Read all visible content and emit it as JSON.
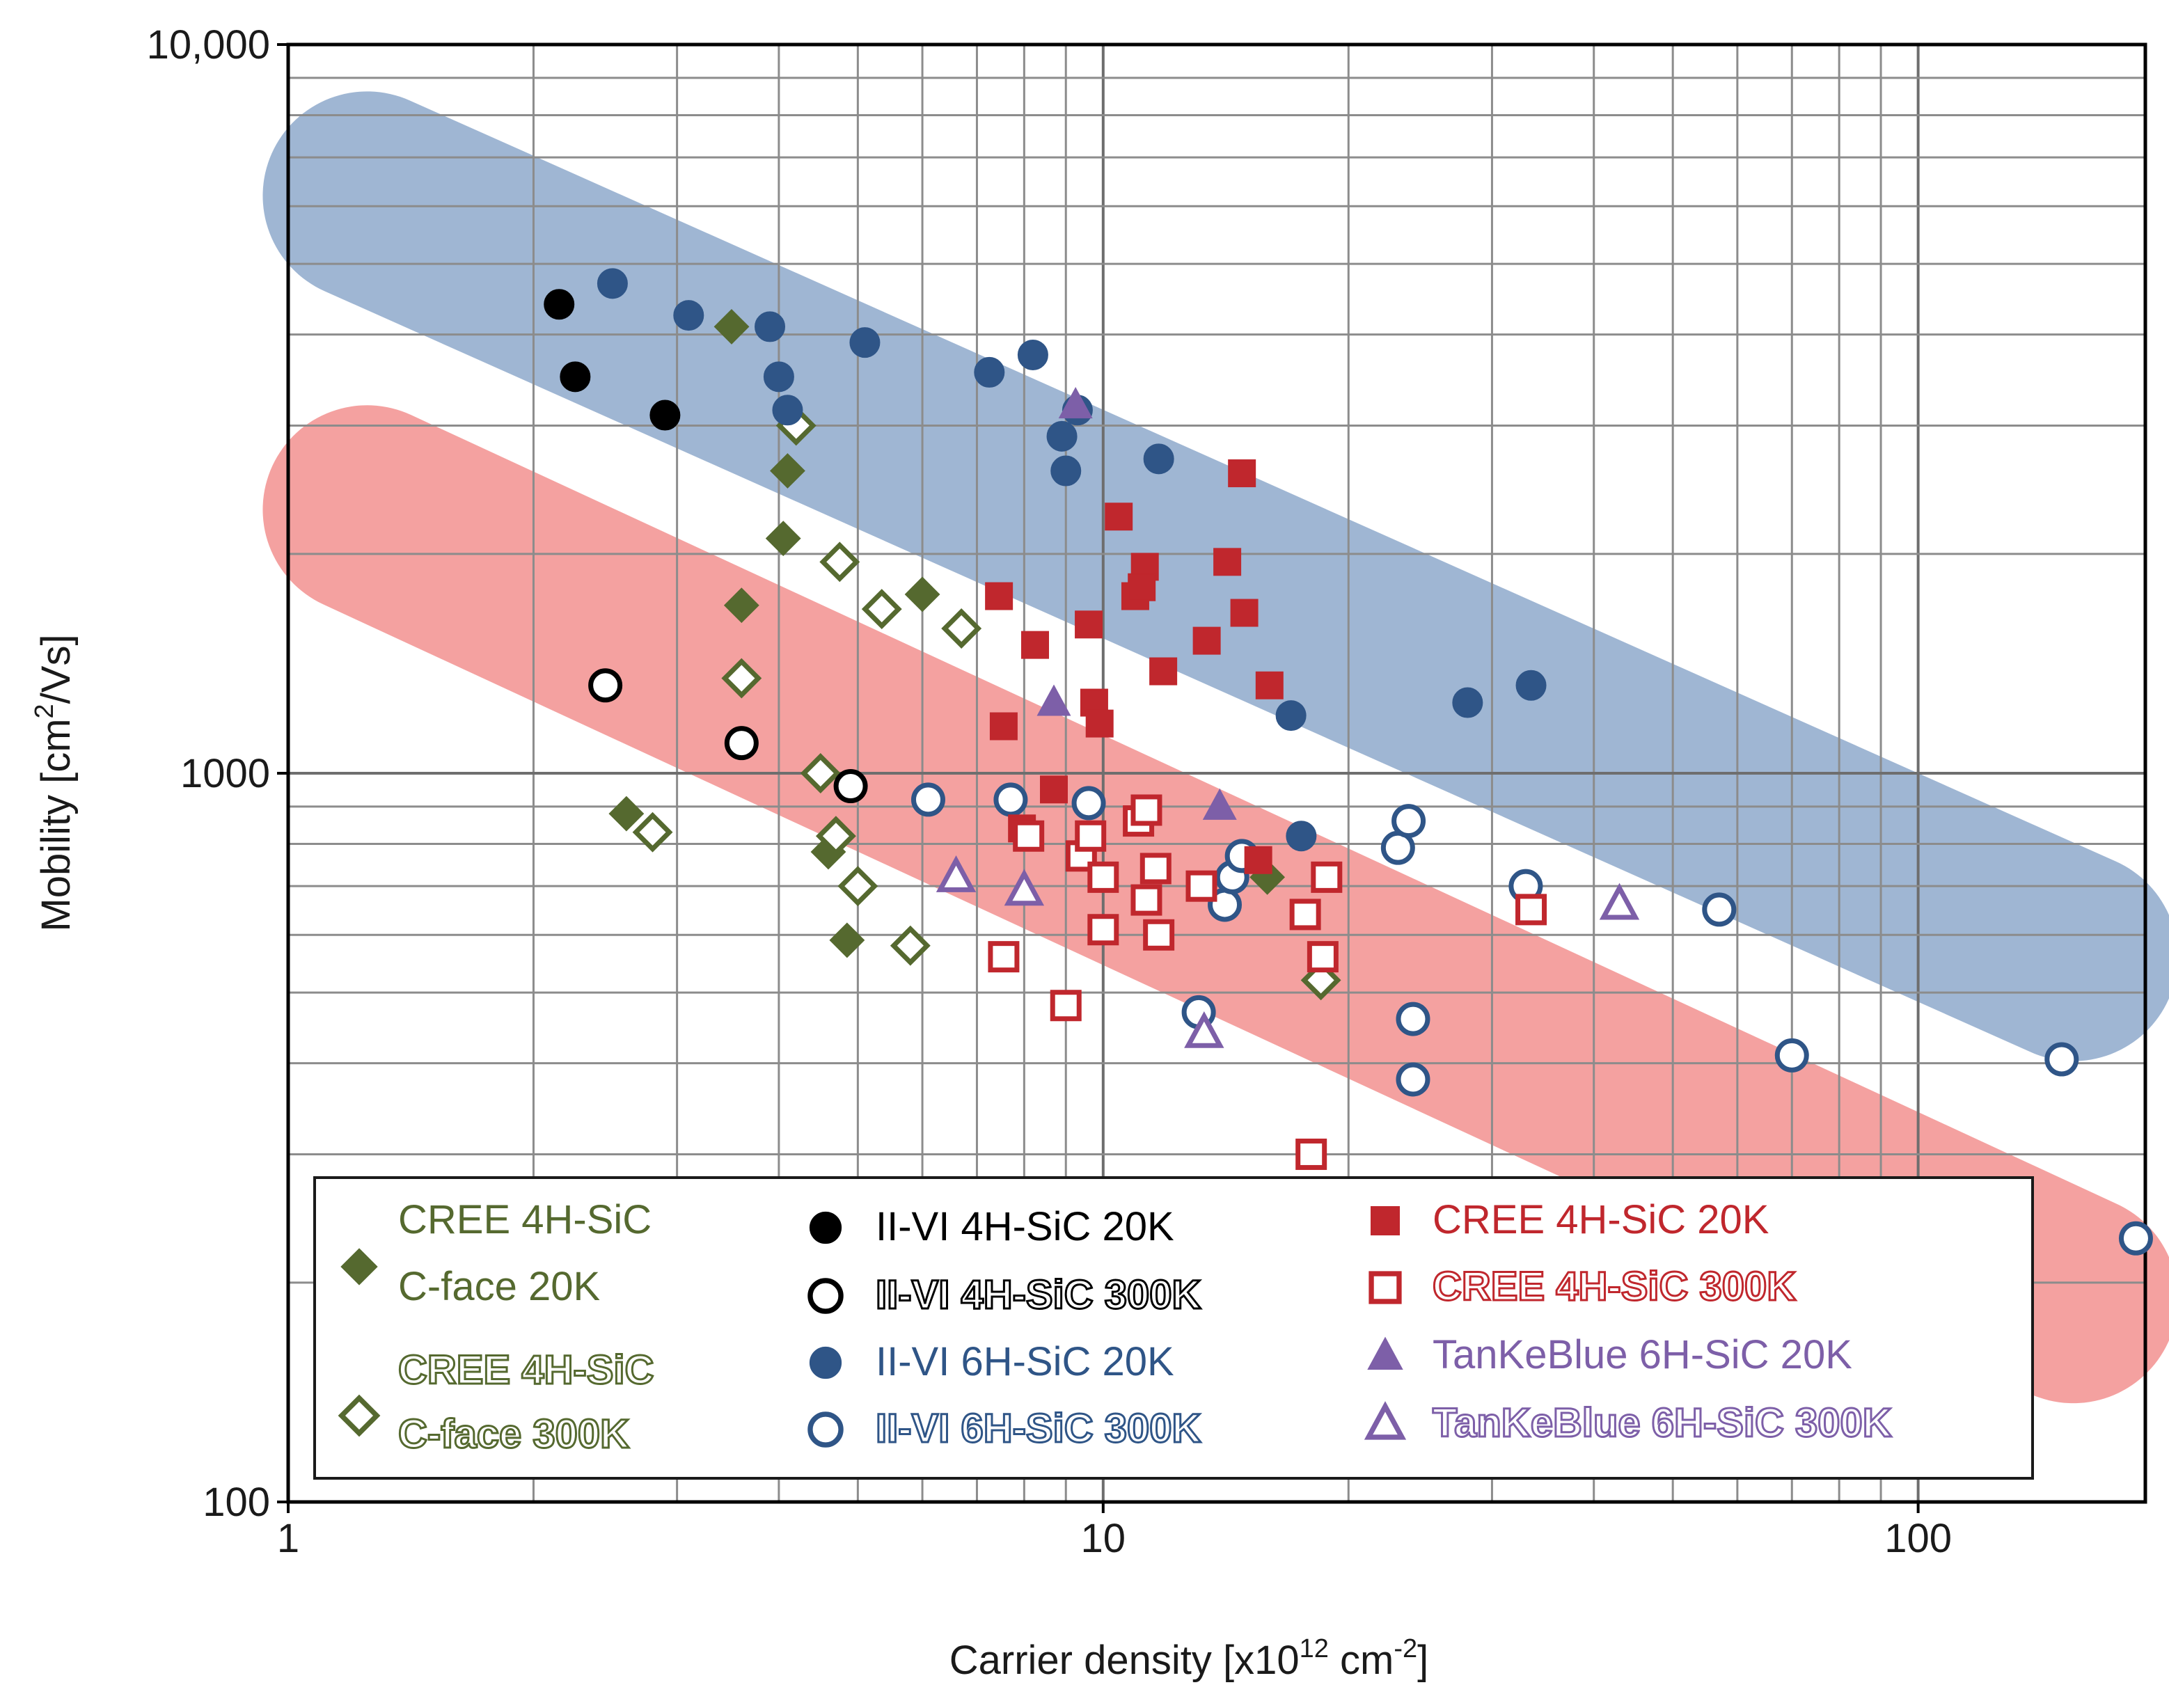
{
  "chart_data": {
    "type": "scatter",
    "xscale": "log",
    "yscale": "log",
    "xlim": [
      1,
      190
    ],
    "ylim": [
      100,
      10000
    ],
    "xlabel_main": "Carrier density [x10",
    "xlabel_exp1": "12",
    "xlabel_mid": " cm",
    "xlabel_exp2": "-2",
    "xlabel_end": "]",
    "ylabel_main": "Mobility [cm",
    "ylabel_exp": "2",
    "ylabel_end": "/Vs]",
    "xticks": [
      {
        "value": 1,
        "label": "1"
      },
      {
        "value": 10,
        "label": "10"
      },
      {
        "value": 100,
        "label": "100"
      }
    ],
    "yticks": [
      {
        "value": 100,
        "label": "100"
      },
      {
        "value": 1000,
        "label": "1000"
      },
      {
        "value": 10000,
        "label": "10,000"
      }
    ],
    "grid": true,
    "bands": [
      {
        "name": "blue-trend-band",
        "color": "#9fb6d3",
        "from": [
          1.25,
          6200
        ],
        "to": [
          155,
          560
        ]
      },
      {
        "name": "red-trend-band",
        "color": "#f4a1a0",
        "from": [
          1.25,
          2300
        ],
        "to": [
          155,
          190
        ]
      }
    ],
    "series": [
      {
        "name": "CREE 4H-SiC C-face 20K",
        "marker": "diamond",
        "filled": true,
        "color": "#55692f",
        "points": [
          [
            3.5,
            4100
          ],
          [
            4.1,
            2600
          ],
          [
            4.05,
            2100
          ],
          [
            3.6,
            1700
          ],
          [
            2.6,
            880
          ],
          [
            4.6,
            780
          ],
          [
            4.85,
            590
          ],
          [
            6.0,
            1760
          ],
          [
            15.9,
            720
          ]
        ]
      },
      {
        "name": "CREE 4H-SiC C-face 300K",
        "marker": "diamond",
        "filled": false,
        "color": "#55692f",
        "points": [
          [
            4.2,
            3000
          ],
          [
            4.75,
            1950
          ],
          [
            5.35,
            1680
          ],
          [
            6.7,
            1580
          ],
          [
            3.6,
            1350
          ],
          [
            4.5,
            1000
          ],
          [
            2.8,
            830
          ],
          [
            4.7,
            820
          ],
          [
            5.0,
            700
          ],
          [
            5.8,
            580
          ],
          [
            18.5,
            520
          ]
        ]
      },
      {
        "name": "II-VI 4H-SiC 20K",
        "marker": "circle",
        "filled": true,
        "color": "#000000",
        "points": [
          [
            2.15,
            4400
          ],
          [
            2.25,
            3500
          ],
          [
            2.9,
            3100
          ]
        ]
      },
      {
        "name": "II-VI 4H-SiC 300K",
        "marker": "circle",
        "filled": false,
        "color": "#000000",
        "points": [
          [
            2.45,
            1320
          ],
          [
            3.6,
            1100
          ],
          [
            4.9,
            960
          ]
        ]
      },
      {
        "name": "II-VI 6H-SiC 20K",
        "marker": "circle",
        "filled": true,
        "color": "#2f5587",
        "points": [
          [
            2.5,
            4700
          ],
          [
            3.1,
            4250
          ],
          [
            3.9,
            4100
          ],
          [
            5.1,
            3900
          ],
          [
            4.0,
            3500
          ],
          [
            4.1,
            3150
          ],
          [
            7.25,
            3550
          ],
          [
            8.2,
            3750
          ],
          [
            8.9,
            2900
          ],
          [
            9.3,
            3150
          ],
          [
            9.0,
            2600
          ],
          [
            11.7,
            2700
          ],
          [
            17.0,
            1200
          ],
          [
            17.5,
            820
          ],
          [
            28.0,
            1250
          ],
          [
            33.5,
            1320
          ]
        ]
      },
      {
        "name": "II-VI 6H-SiC 300K",
        "marker": "circle",
        "filled": false,
        "color": "#2f5587",
        "points": [
          [
            6.1,
            920
          ],
          [
            7.7,
            920
          ],
          [
            9.6,
            910
          ],
          [
            13.1,
            470
          ],
          [
            14.1,
            660
          ],
          [
            14.4,
            720
          ],
          [
            14.8,
            770
          ],
          [
            23.0,
            790
          ],
          [
            23.7,
            860
          ],
          [
            24.0,
            460
          ],
          [
            24.0,
            380
          ],
          [
            33.0,
            700
          ],
          [
            57.0,
            650
          ],
          [
            70.0,
            410
          ],
          [
            150.0,
            405
          ],
          [
            185.0,
            230
          ]
        ]
      },
      {
        "name": "CREE 4H-SiC 20K",
        "marker": "square",
        "filled": true,
        "color": "#c0272d",
        "points": [
          [
            7.45,
            1750
          ],
          [
            7.55,
            1160
          ],
          [
            8.25,
            1500
          ],
          [
            7.95,
            840
          ],
          [
            8.7,
            950
          ],
          [
            9.6,
            1600
          ],
          [
            9.75,
            1250
          ],
          [
            9.9,
            1170
          ],
          [
            10.45,
            2250
          ],
          [
            10.95,
            1750
          ],
          [
            11.25,
            1920
          ],
          [
            11.15,
            1800
          ],
          [
            11.85,
            1380
          ],
          [
            13.4,
            1520
          ],
          [
            14.2,
            1950
          ],
          [
            14.9,
            1660
          ],
          [
            14.8,
            2580
          ],
          [
            16.0,
            1320
          ],
          [
            15.5,
            760
          ]
        ]
      },
      {
        "name": "CREE 4H-SiC 300K",
        "marker": "square",
        "filled": false,
        "color": "#c0272d",
        "points": [
          [
            7.55,
            560
          ],
          [
            8.1,
            820
          ],
          [
            9.0,
            480
          ],
          [
            9.4,
            770
          ],
          [
            9.65,
            820
          ],
          [
            10.0,
            720
          ],
          [
            10.0,
            610
          ],
          [
            11.05,
            860
          ],
          [
            11.3,
            890
          ],
          [
            11.3,
            670
          ],
          [
            11.6,
            740
          ],
          [
            11.7,
            600
          ],
          [
            13.2,
            700
          ],
          [
            17.7,
            640
          ],
          [
            18.6,
            560
          ],
          [
            18.8,
            720
          ],
          [
            18.0,
            300
          ],
          [
            33.5,
            650
          ]
        ]
      },
      {
        "name": "TanKeBlue 6H-SiC 20K",
        "marker": "triangle",
        "filled": true,
        "color": "#7d5fa8",
        "points": [
          [
            9.25,
            3200
          ],
          [
            8.7,
            1250
          ],
          [
            13.9,
            900
          ]
        ]
      },
      {
        "name": "TanKeBlue 6H-SiC 300K",
        "marker": "triangle",
        "filled": false,
        "color": "#7d5fa8",
        "points": [
          [
            6.6,
            720
          ],
          [
            8.0,
            690
          ],
          [
            13.3,
            440
          ],
          [
            43.0,
            660
          ]
        ]
      }
    ],
    "legend": {
      "placement": "bottom-left",
      "entries": [
        {
          "series": 0,
          "lines": [
            "CREE 4H-SiC",
            "C-face 20K"
          ],
          "style": "plain"
        },
        {
          "series": 1,
          "lines": [
            "CREE 4H-SiC",
            "C-face 300K"
          ],
          "style": "outline"
        },
        {
          "series": 2,
          "lines": [
            "II-VI 4H-SiC 20K"
          ],
          "style": "plain"
        },
        {
          "series": 3,
          "lines": [
            "II-VI 4H-SiC 300K"
          ],
          "style": "outline"
        },
        {
          "series": 4,
          "lines": [
            "II-VI 6H-SiC 20K"
          ],
          "style": "plain"
        },
        {
          "series": 5,
          "lines": [
            "II-VI 6H-SiC 300K"
          ],
          "style": "outline"
        },
        {
          "series": 6,
          "lines": [
            "CREE 4H-SiC 20K"
          ],
          "style": "plain"
        },
        {
          "series": 7,
          "lines": [
            "CREE 4H-SiC 300K"
          ],
          "style": "outline"
        },
        {
          "series": 8,
          "lines": [
            "TanKeBlue 6H-SiC 20K"
          ],
          "style": "plain"
        },
        {
          "series": 9,
          "lines": [
            "TanKeBlue 6H-SiC 300K"
          ],
          "style": "outline"
        }
      ]
    }
  }
}
